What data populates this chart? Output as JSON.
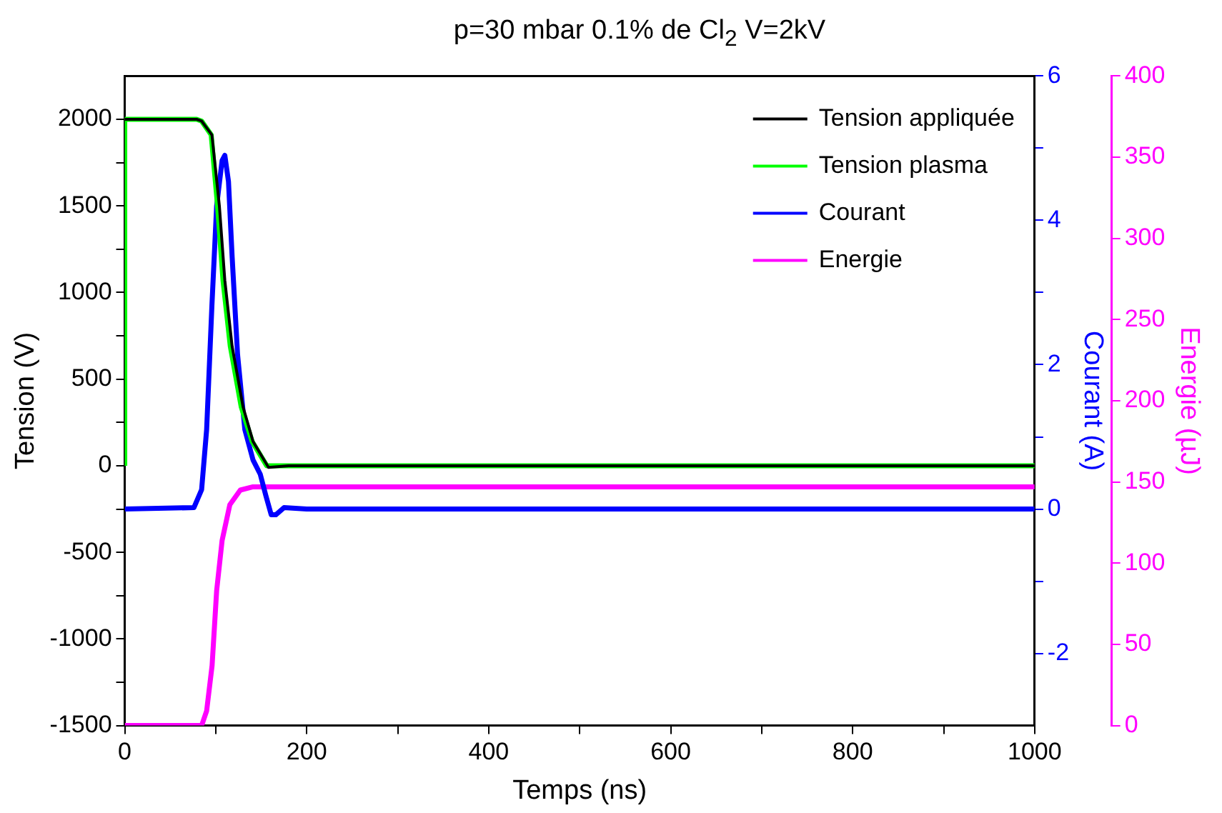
{
  "chart_data": {
    "type": "line",
    "title": "p=30 mbar 0.1% de Cl$_{2}$ V=2kV",
    "xlabel": "Temps (ns)",
    "ylabel": "Tension (V)",
    "y2label": "Courant (A)",
    "y3label": "Energie (µJ)",
    "xlim": [
      0,
      1000
    ],
    "xticks": [
      0,
      {
        "value": 100,
        "label": null
      },
      200,
      {
        "value": 300,
        "label": null
      },
      400,
      {
        "value": 500,
        "label": null
      },
      600,
      {
        "value": 700,
        "label": null
      },
      800,
      {
        "value": 900,
        "label": null
      },
      1000
    ],
    "ylim": [
      -1500,
      2250
    ],
    "yticks": [
      -1500,
      {
        "value": -1250,
        "label": null
      },
      -1000,
      {
        "value": -750,
        "label": null
      },
      -500,
      {
        "value": -250,
        "label": null
      },
      0,
      {
        "value": 250,
        "label": null
      },
      500,
      {
        "value": 750,
        "label": null
      },
      1000,
      {
        "value": 1250,
        "label": null
      },
      1500,
      {
        "value": 1750,
        "label": null
      },
      2000
    ],
    "y2lim": [
      -3,
      6
    ],
    "y2ticks": [
      -2,
      {
        "value": -1,
        "label": null
      },
      0,
      {
        "value": 1,
        "label": null
      },
      2,
      {
        "value": 3,
        "label": null
      },
      4,
      {
        "value": 5,
        "label": null
      },
      6
    ],
    "y3lim": [
      0,
      400
    ],
    "y3ticks": [
      0,
      50,
      100,
      150,
      200,
      250,
      300,
      350,
      400
    ],
    "grid": false,
    "legend": "top right",
    "marker": "none",
    "line_style": "solid",
    "series": [
      {
        "name": "Tension appliquée",
        "color": "#000000",
        "x": [
          0,
          79,
          84.5,
          95.8,
          104,
          110,
          118,
          130,
          141,
          158,
          180,
          1000
        ],
        "values": [
          2000,
          2000,
          1990,
          1910,
          1500,
          1070,
          690,
          340,
          140,
          -10,
          0,
          0
        ]
      },
      {
        "name": "Tension plasma",
        "color": "#00ff00",
        "x": [
          0,
          0,
          79,
          84.5,
          95,
          102,
          108,
          116,
          128,
          140,
          156,
          180,
          1000
        ],
        "values": [
          0,
          2000,
          2000,
          1990,
          1910,
          1500,
          1070,
          690,
          340,
          140,
          0,
          0,
          0
        ]
      },
      {
        "name": "Courant",
        "color": "#0000ff",
        "axis": "y2",
        "x": [
          0,
          76,
          84.5,
          90,
          95.8,
          101,
          107,
          110,
          114,
          118,
          124,
          132,
          141,
          149,
          155,
          161,
          166,
          175,
          200,
          1000
        ],
        "values": [
          0,
          0.02,
          0.27,
          1.1,
          2.82,
          4.2,
          4.83,
          4.9,
          4.54,
          3.5,
          2.14,
          1.1,
          0.68,
          0.48,
          0.19,
          -0.08,
          -0.08,
          0.02,
          0,
          0
        ]
      },
      {
        "name": "Energie",
        "color": "#ff00ff",
        "axis": "y3",
        "x": [
          0,
          84.5,
          90,
          96,
          101,
          107,
          115.5,
          127,
          141,
          1000
        ],
        "values": [
          0,
          0,
          9,
          37,
          83,
          114,
          136,
          145,
          147,
          147
        ]
      }
    ]
  }
}
